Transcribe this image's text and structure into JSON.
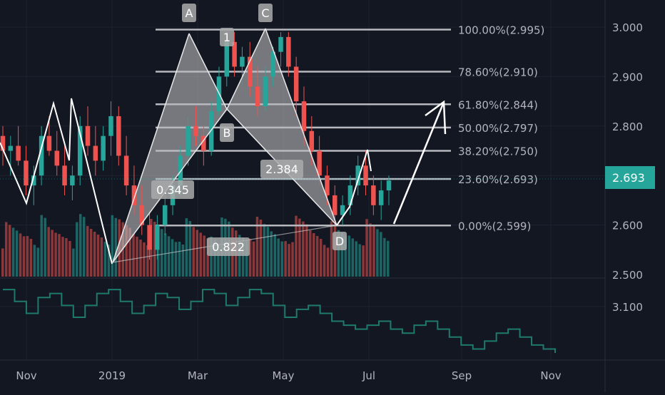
{
  "chart_data": [
    {
      "type": "candlestick",
      "series": [
        {
          "name": "",
          "values": [
            [
              2.78,
              2.8,
              2.72,
              2.75
            ],
            [
              2.75,
              2.78,
              2.7,
              2.76
            ],
            [
              2.76,
              2.8,
              2.72,
              2.73
            ],
            [
              2.73,
              2.76,
              2.66,
              2.68
            ],
            [
              2.68,
              2.72,
              2.64,
              2.7
            ],
            [
              2.7,
              2.8,
              2.68,
              2.78
            ],
            [
              2.78,
              2.82,
              2.74,
              2.75
            ],
            [
              2.75,
              2.79,
              2.7,
              2.72
            ],
            [
              2.72,
              2.76,
              2.66,
              2.68
            ],
            [
              2.68,
              2.72,
              2.65,
              2.7
            ],
            [
              2.7,
              2.82,
              2.68,
              2.8
            ],
            [
              2.8,
              2.84,
              2.74,
              2.76
            ],
            [
              2.76,
              2.8,
              2.7,
              2.73
            ],
            [
              2.73,
              2.8,
              2.71,
              2.78
            ],
            [
              2.78,
              2.85,
              2.74,
              2.82
            ],
            [
              2.82,
              2.84,
              2.72,
              2.74
            ],
            [
              2.74,
              2.78,
              2.66,
              2.68
            ],
            [
              2.68,
              2.72,
              2.62,
              2.64
            ],
            [
              2.64,
              2.68,
              2.58,
              2.6
            ],
            [
              2.6,
              2.63,
              2.53,
              2.55
            ],
            [
              2.55,
              2.62,
              2.53,
              2.6
            ],
            [
              2.6,
              2.66,
              2.58,
              2.64
            ],
            [
              2.64,
              2.7,
              2.62,
              2.68
            ],
            [
              2.68,
              2.76,
              2.66,
              2.74
            ],
            [
              2.74,
              2.82,
              2.72,
              2.8
            ],
            [
              2.8,
              2.84,
              2.76,
              2.78
            ],
            [
              2.78,
              2.8,
              2.72,
              2.75
            ],
            [
              2.75,
              2.85,
              2.74,
              2.83
            ],
            [
              2.83,
              2.92,
              2.82,
              2.9
            ],
            [
              2.9,
              2.99,
              2.88,
              2.97
            ],
            [
              2.97,
              2.99,
              2.9,
              2.92
            ],
            [
              2.92,
              2.96,
              2.88,
              2.94
            ],
            [
              2.94,
              2.97,
              2.86,
              2.88
            ],
            [
              2.88,
              2.92,
              2.82,
              2.84
            ],
            [
              2.84,
              2.92,
              2.83,
              2.9
            ],
            [
              2.9,
              2.96,
              2.88,
              2.95
            ],
            [
              2.95,
              2.99,
              2.92,
              2.98
            ],
            [
              2.98,
              2.99,
              2.9,
              2.92
            ],
            [
              2.92,
              2.94,
              2.82,
              2.85
            ],
            [
              2.85,
              2.88,
              2.76,
              2.79
            ],
            [
              2.79,
              2.82,
              2.72,
              2.75
            ],
            [
              2.75,
              2.78,
              2.68,
              2.7
            ],
            [
              2.7,
              2.72,
              2.64,
              2.66
            ],
            [
              2.66,
              2.68,
              2.6,
              2.62
            ],
            [
              2.62,
              2.66,
              2.6,
              2.64
            ],
            [
              2.64,
              2.7,
              2.62,
              2.68
            ],
            [
              2.68,
              2.74,
              2.66,
              2.72
            ],
            [
              2.72,
              2.75,
              2.66,
              2.68
            ],
            [
              2.68,
              2.7,
              2.62,
              2.64
            ],
            [
              2.64,
              2.69,
              2.61,
              2.67
            ],
            [
              2.67,
              2.7,
              2.64,
              2.69
            ]
          ]
        }
      ],
      "x": [
        "Nov",
        "2019",
        "Mar",
        "May",
        "Jul",
        "Sep",
        "Nov"
      ],
      "ylim": [
        2.5,
        3.03
      ],
      "y_ticks": [
        "3.000",
        "2.900",
        "2.800",
        "2.700",
        "2.600",
        "2.500"
      ],
      "current_price": "2.693",
      "fib_levels": [
        {
          "value": 2.995,
          "label": "100.00%(2.995)"
        },
        {
          "value": 2.91,
          "label": "78.60%(2.910)"
        },
        {
          "value": 2.844,
          "label": "61.80%(2.844)"
        },
        {
          "value": 2.797,
          "label": "50.00%(2.797)"
        },
        {
          "value": 2.75,
          "label": "38.20%(2.750)"
        },
        {
          "value": 2.693,
          "label": "23.60%(2.693)"
        },
        {
          "value": 2.599,
          "label": "0.00%(2.599)"
        }
      ],
      "pattern_points": [
        "A",
        "1",
        "C",
        "B",
        "D"
      ],
      "pattern_ratios": [
        "0.345",
        "2.384",
        "0.822"
      ],
      "grid": true
    },
    {
      "type": "line",
      "series": [
        {
          "name": "",
          "values": [
            3.16,
            3.13,
            3.1,
            3.14,
            3.15,
            3.12,
            3.09,
            3.12,
            3.15,
            3.16,
            3.13,
            3.1,
            3.12,
            3.15,
            3.14,
            3.11,
            3.13,
            3.16,
            3.15,
            3.12,
            3.14,
            3.16,
            3.15,
            3.12,
            3.09,
            3.11,
            3.12,
            3.1,
            3.08,
            3.07,
            3.06,
            3.07,
            3.08,
            3.06,
            3.05,
            3.07,
            3.08,
            3.06,
            3.04,
            3.02,
            3.01,
            3.03,
            3.05,
            3.06,
            3.04,
            3.02,
            3.01,
            3.0
          ]
        }
      ],
      "y_ticks": [
        "3.100"
      ],
      "ylim": [
        3.0,
        3.18
      ],
      "grid": true
    }
  ],
  "colors": {
    "background": "#131722",
    "up": "#26a69a",
    "down": "#ef5350",
    "indicator": "#1e7a6c",
    "price_badge": "#26a69a"
  }
}
